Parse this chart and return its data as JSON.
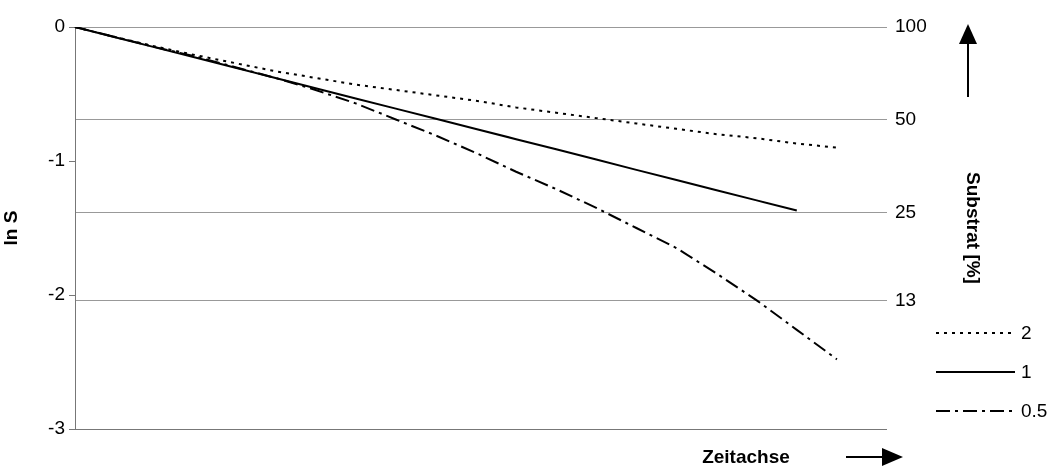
{
  "chart_data": {
    "type": "line",
    "ylabel": "ln S",
    "y2label": "Substrat [%]",
    "xlabel": "Zeitachse",
    "categories": [
      null,
      null,
      null,
      null,
      null,
      null,
      null,
      null,
      null,
      null,
      null,
      null,
      null,
      null,
      null,
      null,
      null,
      null,
      null,
      null,
      null
    ],
    "ylim": [
      -3,
      0
    ],
    "yticks": [
      0,
      -1,
      -2,
      -3
    ],
    "y2lim": [
      4.98,
      100
    ],
    "y2ticks": [
      100,
      50,
      25,
      13
    ],
    "log": "y2",
    "grid": "y2",
    "legend": "bottom right",
    "marker": "none",
    "series": [
      {
        "name": "2",
        "color": "#000000",
        "line_style": "dotted",
        "values": [
          0,
          -0.075,
          -0.145,
          -0.21,
          -0.27,
          -0.33,
          -0.38,
          -0.43,
          -0.47,
          -0.51,
          -0.55,
          -0.6,
          -0.64,
          -0.68,
          -0.72,
          -0.76,
          -0.8,
          -0.83,
          -0.87,
          -0.9,
          null
        ]
      },
      {
        "name": "1",
        "color": "#000000",
        "line_style": "solid",
        "values": [
          0,
          -0.076,
          -0.152,
          -0.228,
          -0.304,
          -0.38,
          -0.457,
          -0.533,
          -0.609,
          -0.685,
          -0.761,
          -0.837,
          -0.913,
          -0.989,
          -1.066,
          -1.142,
          -1.218,
          -1.294,
          -1.37,
          null,
          null
        ]
      },
      {
        "name": "0.5",
        "color": "#000000",
        "line_style": "dashed",
        "values": [
          0,
          -0.075,
          -0.15,
          -0.22,
          -0.3,
          -0.38,
          -0.47,
          -0.57,
          -0.69,
          -0.81,
          -0.94,
          -1.08,
          -1.21,
          -1.35,
          -1.5,
          -1.65,
          -1.84,
          -2.04,
          -2.26,
          -2.48,
          null
        ]
      }
    ]
  }
}
